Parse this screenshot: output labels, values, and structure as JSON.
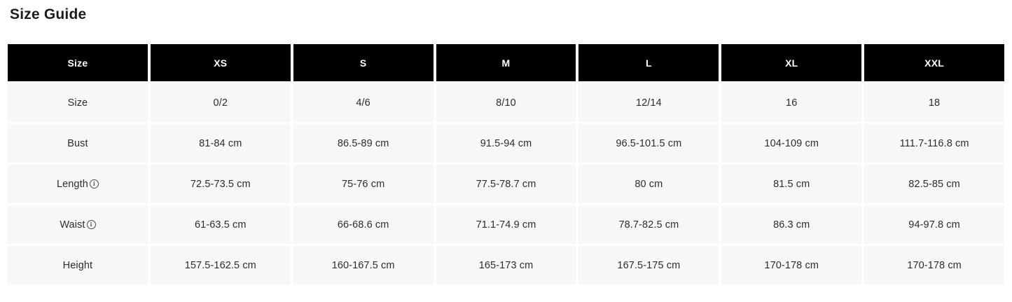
{
  "page_title": "Size Guide",
  "colors": {
    "header_background": "#000000",
    "header_text": "#ffffff",
    "cell_background": "#f7f7f7",
    "cell_text": "#2d2d2d",
    "page_background": "#ffffff",
    "title_text": "#1c1c1c"
  },
  "icons": {
    "info_icon_glyph": "i"
  },
  "table": {
    "headers": [
      "Size",
      "XS",
      "S",
      "M",
      "L",
      "XL",
      "XXL"
    ],
    "rows": [
      {
        "label": "Size",
        "values": [
          "0/2",
          "4/6",
          "8/10",
          "12/14",
          "16",
          "18"
        ]
      },
      {
        "label": "Bust",
        "values": [
          "81-84 cm",
          "86.5-89 cm",
          "91.5-94 cm",
          "96.5-101.5 cm",
          "104-109 cm",
          "111.7-116.8 cm"
        ]
      },
      {
        "label": "Length",
        "values": [
          "72.5-73.5 cm",
          "75-76 cm",
          "77.5-78.7 cm",
          "80 cm",
          "81.5 cm",
          "82.5-85 cm"
        ]
      },
      {
        "label": "Waist",
        "values": [
          "61-63.5 cm",
          "66-68.6 cm",
          "71.1-74.9 cm",
          "78.7-82.5 cm",
          "86.3 cm",
          "94-97.8 cm"
        ]
      },
      {
        "label": "Height",
        "values": [
          "157.5-162.5 cm",
          "160-167.5 cm",
          "165-173 cm",
          "167.5-175 cm",
          "170-178 cm",
          "170-178 cm"
        ]
      }
    ]
  }
}
